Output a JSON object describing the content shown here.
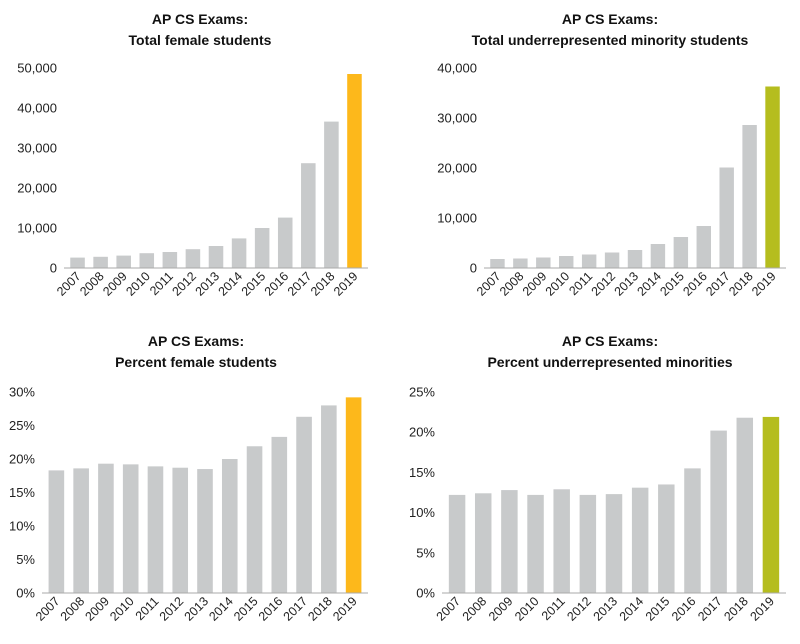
{
  "colors": {
    "bar": "#c8cacb",
    "highlight_orange": "#fdb81b",
    "highlight_green": "#b5bd1e",
    "axis": "#aaaaaa",
    "text": "#222222"
  },
  "chart_data": [
    {
      "type": "bar",
      "title": [
        "AP CS Exams:",
        "Total female students"
      ],
      "categories": [
        "2007",
        "2008",
        "2009",
        "2010",
        "2011",
        "2012",
        "2013",
        "2014",
        "2015",
        "2016",
        "2017",
        "2018",
        "2019"
      ],
      "values": [
        2600,
        2800,
        3100,
        3700,
        4000,
        4700,
        5500,
        7400,
        10000,
        12600,
        26200,
        36600,
        48500
      ],
      "ylim": [
        0,
        50000
      ],
      "yticks": [
        0,
        10000,
        20000,
        30000,
        40000,
        50000
      ],
      "ytick_labels": [
        "0",
        "10,000",
        "20,000",
        "30,000",
        "40,000",
        "50,000"
      ],
      "highlight_index": 12,
      "highlight_color": "#fdb81b"
    },
    {
      "type": "bar",
      "title": [
        "AP CS Exams:",
        "Total underrepresented minority students"
      ],
      "categories": [
        "2007",
        "2008",
        "2009",
        "2010",
        "2011",
        "2012",
        "2013",
        "2014",
        "2015",
        "2016",
        "2017",
        "2018",
        "2019"
      ],
      "values": [
        1800,
        1900,
        2100,
        2400,
        2700,
        3100,
        3600,
        4800,
        6200,
        8400,
        20100,
        28600,
        36300
      ],
      "ylim": [
        0,
        40000
      ],
      "yticks": [
        0,
        10000,
        20000,
        30000,
        40000
      ],
      "ytick_labels": [
        "0",
        "10,000",
        "20,000",
        "30,000",
        "40,000"
      ],
      "highlight_index": 12,
      "highlight_color": "#b5bd1e"
    },
    {
      "type": "bar",
      "title": [
        "AP CS Exams:",
        "Percent female students"
      ],
      "categories": [
        "2007",
        "2008",
        "2009",
        "2010",
        "2011",
        "2012",
        "2013",
        "2014",
        "2015",
        "2016",
        "2017",
        "2018",
        "2019"
      ],
      "values": [
        18.3,
        18.6,
        19.3,
        19.2,
        18.9,
        18.7,
        18.5,
        20.0,
        21.9,
        23.3,
        26.3,
        28.0,
        29.2
      ],
      "ylim": [
        0,
        30
      ],
      "yticks": [
        0,
        5,
        10,
        15,
        20,
        25,
        30
      ],
      "ytick_labels": [
        "0%",
        "5%",
        "10%",
        "15%",
        "20%",
        "25%",
        "30%"
      ],
      "highlight_index": 12,
      "highlight_color": "#fdb81b"
    },
    {
      "type": "bar",
      "title": [
        "AP CS Exams:",
        "Percent underrepresented minorities"
      ],
      "categories": [
        "2007",
        "2008",
        "2009",
        "2010",
        "2011",
        "2012",
        "2013",
        "2014",
        "2015",
        "2016",
        "2017",
        "2018",
        "2019"
      ],
      "values": [
        12.2,
        12.4,
        12.8,
        12.2,
        12.9,
        12.2,
        12.3,
        13.1,
        13.5,
        15.5,
        20.2,
        21.8,
        21.9
      ],
      "ylim": [
        0,
        25
      ],
      "yticks": [
        0,
        5,
        10,
        15,
        20,
        25
      ],
      "ytick_labels": [
        "0%",
        "5%",
        "10%",
        "15%",
        "20%",
        "25%"
      ],
      "highlight_index": 12,
      "highlight_color": "#b5bd1e"
    }
  ]
}
